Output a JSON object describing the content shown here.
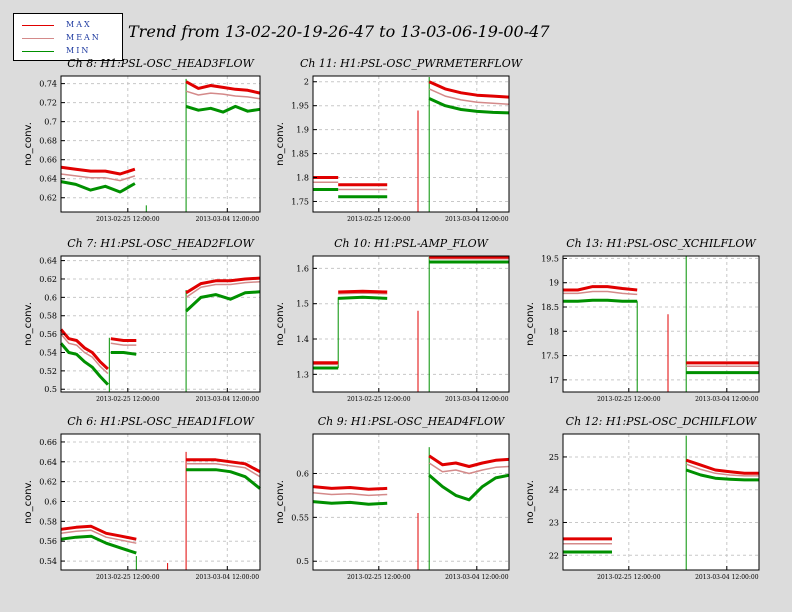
{
  "title": "Trend from 13-02-20-19-26-47 to 13-03-06-19-00-47",
  "legend": [
    {
      "label": "MAX",
      "color": "#e00000"
    },
    {
      "label": "MEAN",
      "color": "#d48a8a"
    },
    {
      "label": "MIN",
      "color": "#009000"
    }
  ],
  "x_tick_labels": [
    "2013-02-25 12:00:00",
    "2013-03-04 12:00:00"
  ],
  "chart_data": [
    {
      "type": "line",
      "title": "Ch 8: H1:PSL-OSC_HEAD3FLOW",
      "ylabel": "no_conv.",
      "ylim": [
        0.605,
        0.748
      ],
      "yticks": [
        0.62,
        0.64,
        0.66,
        0.68,
        0.7,
        0.72,
        0.74
      ],
      "ytick_labels": [
        "0.62",
        "0.64",
        "0.66",
        "0.68",
        "0.7",
        "0.72",
        "0.74"
      ],
      "xlim": [
        0,
        14
      ],
      "xticks": [
        4.7,
        11.7
      ],
      "gap": [
        6.0,
        8.8
      ],
      "segments": [
        {
          "x0": 0,
          "x1": 5.2,
          "max": [
            0.652,
            0.65,
            0.648,
            0.648,
            0.645,
            0.65
          ],
          "mean": [
            0.645,
            0.643,
            0.641,
            0.641,
            0.638,
            0.643
          ],
          "min": [
            0.637,
            0.634,
            0.628,
            0.632,
            0.626,
            0.635
          ]
        },
        {
          "x0": 8.8,
          "x1": 14,
          "max": [
            0.742,
            0.735,
            0.738,
            0.736,
            0.734,
            0.733,
            0.73
          ],
          "mean": [
            0.732,
            0.728,
            0.73,
            0.729,
            0.727,
            0.726,
            0.724
          ],
          "min": [
            0.716,
            0.712,
            0.714,
            0.71,
            0.716,
            0.711,
            0.713
          ]
        }
      ],
      "spikes": [
        {
          "x": 6.0,
          "y0": 0.605,
          "y1": 0.612,
          "color": "#009000"
        },
        {
          "x": 8.8,
          "y0": 0.605,
          "y1": 0.745,
          "color": "#009000"
        }
      ]
    },
    {
      "type": "line",
      "title": "Ch 11: H1:PSL-OSC_PWRMETERFLOW",
      "ylabel": "no_conv.",
      "ylim": [
        1.728,
        2.012
      ],
      "yticks": [
        1.75,
        1.8,
        1.85,
        1.9,
        1.95,
        2.0
      ],
      "ytick_labels": [
        "1.75",
        "1.8",
        "1.85",
        "1.9",
        "1.95",
        "2"
      ],
      "xlim": [
        0,
        14
      ],
      "xticks": [
        4.7,
        11.7
      ],
      "gap": [
        5.3,
        8.3
      ],
      "segments": [
        {
          "x0": 0,
          "x1": 1.8,
          "max": [
            1.8,
            1.8,
            1.8
          ],
          "mean": [
            1.79,
            1.79,
            1.79
          ],
          "min": [
            1.775,
            1.775,
            1.775
          ]
        },
        {
          "x0": 1.8,
          "x1": 5.3,
          "max": [
            1.785,
            1.785,
            1.785
          ],
          "mean": [
            1.775,
            1.775,
            1.775
          ],
          "min": [
            1.76,
            1.76,
            1.76
          ]
        },
        {
          "x0": 8.3,
          "x1": 14,
          "max": [
            2.0,
            1.985,
            1.977,
            1.972,
            1.97,
            1.968
          ],
          "mean": [
            1.985,
            1.97,
            1.962,
            1.957,
            1.955,
            1.953
          ],
          "min": [
            1.965,
            1.95,
            1.942,
            1.938,
            1.936,
            1.935
          ]
        }
      ],
      "spikes": [
        {
          "x": 7.5,
          "y0": 1.728,
          "y1": 1.94,
          "color": "#e00000"
        },
        {
          "x": 8.3,
          "y0": 1.728,
          "y1": 2.01,
          "color": "#009000"
        }
      ]
    },
    {
      "type": "line",
      "title": "Ch 7: H1:PSL-OSC_HEAD2FLOW",
      "ylabel": "no_conv.",
      "ylim": [
        0.497,
        0.645
      ],
      "yticks": [
        0.5,
        0.52,
        0.54,
        0.56,
        0.58,
        0.6,
        0.62,
        0.64
      ],
      "ytick_labels": [
        "0.5",
        "0.52",
        "0.54",
        "0.56",
        "0.58",
        "0.6",
        "0.62",
        "0.64"
      ],
      "xlim": [
        0,
        14
      ],
      "xticks": [
        4.7,
        11.7
      ],
      "gap": [
        5.3,
        8.8
      ],
      "segments": [
        {
          "x0": 0,
          "x1": 3.3,
          "max": [
            0.565,
            0.555,
            0.553,
            0.545,
            0.54,
            0.53,
            0.522
          ],
          "mean": [
            0.56,
            0.55,
            0.548,
            0.54,
            0.535,
            0.525,
            0.517
          ],
          "min": [
            0.55,
            0.54,
            0.538,
            0.53,
            0.524,
            0.514,
            0.505
          ]
        },
        {
          "x0": 3.5,
          "x1": 5.3,
          "max": [
            0.555,
            0.553,
            0.553
          ],
          "mean": [
            0.55,
            0.548,
            0.548
          ],
          "min": [
            0.54,
            0.54,
            0.538
          ]
        },
        {
          "x0": 8.8,
          "x1": 14,
          "max": [
            0.605,
            0.615,
            0.618,
            0.618,
            0.62,
            0.621
          ],
          "mean": [
            0.6,
            0.611,
            0.614,
            0.614,
            0.616,
            0.617
          ],
          "min": [
            0.585,
            0.6,
            0.603,
            0.598,
            0.605,
            0.606
          ]
        }
      ],
      "spikes": [
        {
          "x": 3.4,
          "y0": 0.497,
          "y1": 0.556,
          "color": "#009000"
        },
        {
          "x": 8.8,
          "y0": 0.497,
          "y1": 0.608,
          "color": "#009000"
        }
      ]
    },
    {
      "type": "line",
      "title": "Ch 10: H1:PSL-AMP_FLOW",
      "ylabel": "no_conv.",
      "ylim": [
        1.25,
        1.635
      ],
      "yticks": [
        1.3,
        1.4,
        1.5,
        1.6
      ],
      "ytick_labels": [
        "1.3",
        "1.4",
        "1.5",
        "1.6"
      ],
      "xlim": [
        0,
        14
      ],
      "xticks": [
        4.7,
        11.7
      ],
      "gap": [
        5.3,
        8.3
      ],
      "segments": [
        {
          "x0": 0,
          "x1": 1.8,
          "max": [
            1.333,
            1.333,
            1.333
          ],
          "mean": [
            1.328,
            1.328,
            1.328
          ],
          "min": [
            1.318,
            1.318,
            1.318
          ]
        },
        {
          "x0": 1.8,
          "x1": 5.3,
          "max": [
            1.533,
            1.535,
            1.533
          ],
          "mean": [
            1.528,
            1.53,
            1.528
          ],
          "min": [
            1.515,
            1.518,
            1.515
          ]
        },
        {
          "x0": 8.3,
          "x1": 14,
          "max": [
            1.632,
            1.632,
            1.632
          ],
          "mean": [
            1.627,
            1.627,
            1.627
          ],
          "min": [
            1.618,
            1.618,
            1.618
          ]
        }
      ],
      "spikes": [
        {
          "x": 1.8,
          "y0": 1.318,
          "y1": 1.518,
          "color": "#009000"
        },
        {
          "x": 7.5,
          "y0": 1.25,
          "y1": 1.48,
          "color": "#e00000"
        },
        {
          "x": 8.3,
          "y0": 1.25,
          "y1": 1.632,
          "color": "#009000"
        }
      ]
    },
    {
      "type": "line",
      "title": "Ch 13: H1:PSL-OSC_XCHILFLOW",
      "ylabel": "no_conv.",
      "ylim": [
        16.75,
        19.55
      ],
      "yticks": [
        17,
        17.5,
        18,
        18.5,
        19,
        19.5
      ],
      "ytick_labels": [
        "17",
        "17.5",
        "18",
        "18.5",
        "19",
        "19.5"
      ],
      "xlim": [
        0,
        14
      ],
      "xticks": [
        4.7,
        11.7
      ],
      "gap": [
        5.3,
        8.8
      ],
      "segments": [
        {
          "x0": 0,
          "x1": 5.3,
          "max": [
            18.85,
            18.85,
            18.92,
            18.92,
            18.88,
            18.85
          ],
          "mean": [
            18.78,
            18.78,
            18.82,
            18.82,
            18.78,
            18.76
          ],
          "min": [
            18.62,
            18.62,
            18.64,
            18.64,
            18.62,
            18.62
          ]
        },
        {
          "x0": 8.8,
          "x1": 14,
          "max": [
            17.35,
            17.35,
            17.35,
            17.35,
            17.35,
            17.35
          ],
          "mean": [
            17.28,
            17.28,
            17.28,
            17.28,
            17.28,
            17.28
          ],
          "min": [
            17.15,
            17.15,
            17.15,
            17.15,
            17.15,
            17.15
          ]
        }
      ],
      "spikes": [
        {
          "x": 5.3,
          "y0": 16.75,
          "y1": 18.62,
          "color": "#009000"
        },
        {
          "x": 7.5,
          "y0": 16.75,
          "y1": 18.35,
          "color": "#e00000"
        },
        {
          "x": 8.8,
          "y0": 16.75,
          "y1": 19.55,
          "color": "#009000"
        }
      ]
    },
    {
      "type": "line",
      "title": "Ch 6: H1:PSL-OSC_HEAD1FLOW",
      "ylabel": "no_conv.",
      "ylim": [
        0.531,
        0.668
      ],
      "yticks": [
        0.54,
        0.56,
        0.58,
        0.6,
        0.62,
        0.64,
        0.66
      ],
      "ytick_labels": [
        "0.54",
        "0.56",
        "0.58",
        "0.6",
        "0.62",
        "0.64",
        "0.66"
      ],
      "xlim": [
        0,
        14
      ],
      "xticks": [
        4.7,
        11.7
      ],
      "gap": [
        5.3,
        8.8
      ],
      "segments": [
        {
          "x0": 0,
          "x1": 5.3,
          "max": [
            0.572,
            0.574,
            0.575,
            0.568,
            0.565,
            0.562
          ],
          "mean": [
            0.568,
            0.57,
            0.571,
            0.564,
            0.561,
            0.558
          ],
          "min": [
            0.562,
            0.564,
            0.565,
            0.558,
            0.553,
            0.548
          ]
        },
        {
          "x0": 8.8,
          "x1": 14,
          "max": [
            0.642,
            0.642,
            0.642,
            0.64,
            0.638,
            0.63
          ],
          "mean": [
            0.638,
            0.638,
            0.638,
            0.636,
            0.634,
            0.625
          ],
          "min": [
            0.632,
            0.632,
            0.632,
            0.63,
            0.625,
            0.613
          ]
        }
      ],
      "spikes": [
        {
          "x": 5.3,
          "y0": 0.531,
          "y1": 0.545,
          "color": "#009000"
        },
        {
          "x": 7.5,
          "y0": 0.531,
          "y1": 0.538,
          "color": "#e00000"
        },
        {
          "x": 8.8,
          "y0": 0.531,
          "y1": 0.65,
          "color": "#e00000"
        }
      ]
    },
    {
      "type": "line",
      "title": "Ch 9: H1:PSL-OSC_HEAD4FLOW",
      "ylabel": "no_conv.",
      "ylim": [
        0.49,
        0.645
      ],
      "yticks": [
        0.5,
        0.55,
        0.6
      ],
      "ytick_labels": [
        "0.5",
        "0.55",
        "0.6"
      ],
      "xlim": [
        0,
        14
      ],
      "xticks": [
        4.7,
        11.7
      ],
      "gap": [
        5.3,
        8.3
      ],
      "segments": [
        {
          "x0": 0,
          "x1": 5.3,
          "max": [
            0.585,
            0.583,
            0.584,
            0.582,
            0.583
          ],
          "mean": [
            0.578,
            0.576,
            0.577,
            0.575,
            0.576
          ],
          "min": [
            0.568,
            0.566,
            0.567,
            0.565,
            0.566
          ]
        },
        {
          "x0": 8.3,
          "x1": 14,
          "max": [
            0.62,
            0.61,
            0.612,
            0.608,
            0.612,
            0.615,
            0.616
          ],
          "mean": [
            0.612,
            0.602,
            0.604,
            0.6,
            0.604,
            0.607,
            0.608
          ],
          "min": [
            0.598,
            0.585,
            0.575,
            0.57,
            0.585,
            0.595,
            0.598
          ]
        }
      ],
      "spikes": [
        {
          "x": 7.5,
          "y0": 0.49,
          "y1": 0.555,
          "color": "#e00000"
        },
        {
          "x": 8.3,
          "y0": 0.49,
          "y1": 0.63,
          "color": "#009000"
        }
      ]
    },
    {
      "type": "line",
      "title": "Ch 12: H1:PSL-OSC_DCHILFLOW",
      "ylabel": "no_conv.",
      "ylim": [
        21.55,
        25.7
      ],
      "yticks": [
        22,
        23,
        24,
        25
      ],
      "ytick_labels": [
        "22",
        "23",
        "24",
        "25"
      ],
      "xlim": [
        0,
        14
      ],
      "xticks": [
        4.7,
        11.7
      ],
      "gap": [
        3.5,
        8.8
      ],
      "segments": [
        {
          "x0": 0,
          "x1": 3.5,
          "max": [
            22.5,
            22.5,
            22.5,
            22.5
          ],
          "mean": [
            22.35,
            22.35,
            22.35,
            22.35
          ],
          "min": [
            22.1,
            22.1,
            22.1,
            22.1
          ]
        },
        {
          "x0": 8.8,
          "x1": 14,
          "max": [
            24.9,
            24.75,
            24.6,
            24.55,
            24.5,
            24.5
          ],
          "mean": [
            24.78,
            24.62,
            24.5,
            24.45,
            24.42,
            24.42
          ],
          "min": [
            24.6,
            24.45,
            24.35,
            24.32,
            24.3,
            24.3
          ]
        }
      ],
      "spikes": [
        {
          "x": 8.8,
          "y0": 21.55,
          "y1": 25.65,
          "color": "#009000"
        }
      ]
    }
  ]
}
